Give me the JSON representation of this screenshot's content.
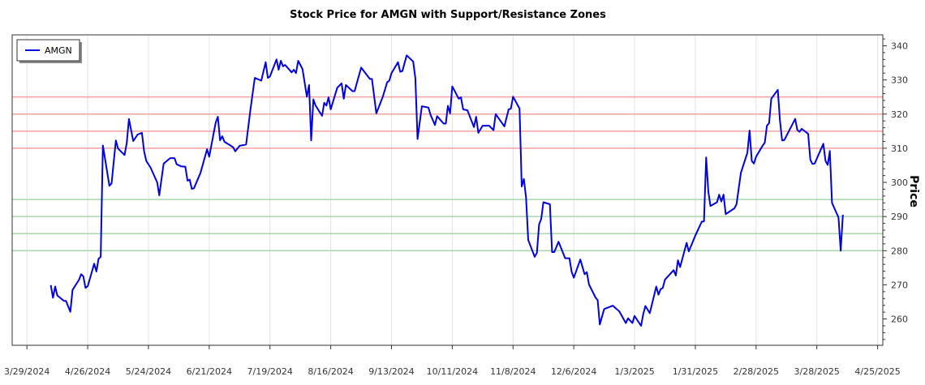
{
  "chart_data": {
    "type": "line",
    "title": "Stock Price for AMGN with Support/Resistance Zones",
    "xlabel": "",
    "ylabel": "Price",
    "x_unit": "days since 3/29/2024",
    "xlim": [
      -6.8,
      394.4
    ],
    "ylim": [
      252.3,
      343.2
    ],
    "x_ticks": [
      0,
      28,
      56,
      84,
      112,
      140,
      168,
      196,
      224,
      252,
      280,
      308,
      336,
      364,
      392
    ],
    "x_tick_labels": [
      "3/29/2024",
      "4/26/2024",
      "5/24/2024",
      "6/21/2024",
      "7/19/2024",
      "8/16/2024",
      "9/13/2024",
      "10/11/2024",
      "11/8/2024",
      "12/6/2024",
      "1/3/2025",
      "1/31/2025",
      "2/28/2025",
      "3/28/2025",
      "4/25/2025"
    ],
    "y_ticks": [
      260,
      270,
      280,
      290,
      300,
      310,
      320,
      330,
      340
    ],
    "y_tick_labels": [
      "260",
      "270",
      "280",
      "290",
      "300",
      "310",
      "320",
      "330",
      "340"
    ],
    "grid": "vertical",
    "legend": {
      "placement": "top-left",
      "entries": [
        "AMGN"
      ]
    },
    "resistance_levels": [
      310,
      315,
      320,
      325
    ],
    "support_levels": [
      280,
      285,
      290,
      295
    ],
    "colors": {
      "line": "#0000e0",
      "resistance": "#f4a0a0",
      "support": "#a8d8a8",
      "grid": "#e2e2e2"
    },
    "series": [
      {
        "name": "AMGN",
        "x": [
          11,
          12,
          13,
          14,
          17,
          18,
          20,
          21,
          24,
          25,
          26,
          27,
          28,
          31,
          32,
          33,
          34,
          35,
          38,
          39,
          41,
          42,
          45,
          46,
          47,
          49,
          51,
          53,
          54,
          55,
          57,
          60,
          61,
          63,
          66,
          68,
          69,
          71,
          73,
          74,
          75,
          76,
          77,
          80,
          83,
          84,
          87,
          88,
          89,
          90,
          91,
          95,
          96,
          98,
          101,
          103,
          105,
          108,
          110,
          111,
          112,
          115,
          116,
          117,
          118,
          119,
          122,
          123,
          124,
          125,
          127,
          129,
          130,
          131,
          132,
          133,
          136,
          137,
          138,
          139,
          140,
          143,
          145,
          146,
          147,
          150,
          151,
          154,
          158,
          159,
          161,
          164,
          166,
          167,
          168,
          171,
          172,
          173,
          175,
          178,
          179,
          180,
          182,
          185,
          186,
          188,
          189,
          192,
          193,
          194,
          195,
          196,
          199,
          200,
          201,
          203,
          206,
          207,
          208,
          210,
          213,
          215,
          216,
          220,
          222,
          223,
          224,
          227,
          228,
          229,
          230,
          231,
          234,
          235,
          236,
          237,
          238,
          241,
          242,
          243,
          245,
          248,
          250,
          251,
          252,
          255,
          257,
          258,
          259,
          262,
          263,
          264,
          266,
          270,
          273,
          276,
          277,
          279,
          280,
          283,
          284,
          285,
          287,
          290,
          291,
          292,
          293,
          294,
          298,
          299,
          300,
          301,
          304,
          305,
          308,
          311,
          312,
          313,
          314,
          315,
          318,
          319,
          320,
          321,
          322,
          326,
          327,
          329,
          332,
          333,
          334,
          335,
          336,
          339,
          340,
          341,
          342,
          343,
          346,
          347,
          348,
          349,
          354,
          355,
          356,
          357,
          360,
          361,
          362,
          363,
          367,
          368,
          369,
          370,
          371,
          374,
          375,
          376
        ],
        "values": [
          269.9,
          266.2,
          269.5,
          266.9,
          265.3,
          265.3,
          262.1,
          268.5,
          271.5,
          273.1,
          272.5,
          269.1,
          269.6,
          276.2,
          273.9,
          277.6,
          278.2,
          310.8,
          299.0,
          299.7,
          312.3,
          309.9,
          308.0,
          311.5,
          318.6,
          312.1,
          314.0,
          314.5,
          309.1,
          306.3,
          304.3,
          300.0,
          296.2,
          305.5,
          307.1,
          307.1,
          305.3,
          304.7,
          304.6,
          300.5,
          300.8,
          298.1,
          298.3,
          302.8,
          309.7,
          307.5,
          317.6,
          319.2,
          312.3,
          313.5,
          311.9,
          310.3,
          309.1,
          310.7,
          311.1,
          321.4,
          330.6,
          329.8,
          335.2,
          330.6,
          331.0,
          336.0,
          333.0,
          335.6,
          334.0,
          334.4,
          332.2,
          333.0,
          332.0,
          335.6,
          333.2,
          325.1,
          328.5,
          312.3,
          324.3,
          322.5,
          319.5,
          323.3,
          322.5,
          324.9,
          321.4,
          327.7,
          329.0,
          324.5,
          328.5,
          326.7,
          326.7,
          333.6,
          330.3,
          330.3,
          320.2,
          325.1,
          329.3,
          329.8,
          332.0,
          335.2,
          332.4,
          332.6,
          337.2,
          335.4,
          330.5,
          312.7,
          322.3,
          321.9,
          319.8,
          316.8,
          319.4,
          317.2,
          317.2,
          322.4,
          320.2,
          328.1,
          324.5,
          324.9,
          321.4,
          321.1,
          316.2,
          319.2,
          314.5,
          316.6,
          316.6,
          315.3,
          320.0,
          316.4,
          321.4,
          321.6,
          325.1,
          321.6,
          298.8,
          301.0,
          295.6,
          283.1,
          278.2,
          279.4,
          287.7,
          289.3,
          294.2,
          293.6,
          279.6,
          279.6,
          282.6,
          277.8,
          277.8,
          273.8,
          272.1,
          277.4,
          273.1,
          273.7,
          270.1,
          266.3,
          265.5,
          258.4,
          262.9,
          263.9,
          262.2,
          258.8,
          260.2,
          258.8,
          260.9,
          258.0,
          261.4,
          263.8,
          261.7,
          269.5,
          267.1,
          268.7,
          269.1,
          271.5,
          274.3,
          272.7,
          277.2,
          275.2,
          282.3,
          279.8,
          284.4,
          288.5,
          288.6,
          307.3,
          297.2,
          293.1,
          294.2,
          296.4,
          294.4,
          296.4,
          290.7,
          292.4,
          293.6,
          302.8,
          308.7,
          315.2,
          306.3,
          305.5,
          307.5,
          310.7,
          311.6,
          316.6,
          317.4,
          324.5,
          327.1,
          318.2,
          312.3,
          312.4,
          318.6,
          315.4,
          314.8,
          315.7,
          314.2,
          306.6,
          305.4,
          305.5,
          311.3,
          306.3,
          305.1,
          309.2,
          294.0,
          289.7,
          280.0,
          290.5
        ]
      }
    ]
  }
}
